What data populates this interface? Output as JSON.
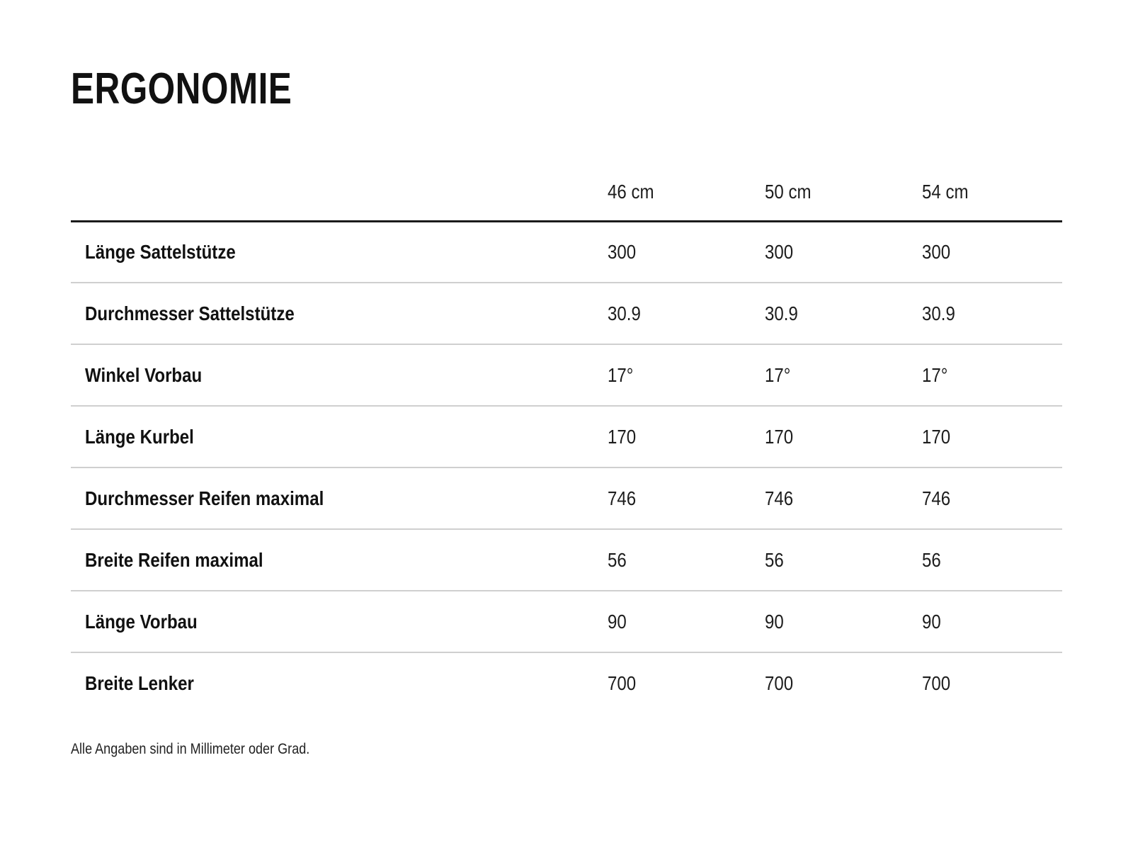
{
  "title": "ERGONOMIE",
  "table": {
    "size_columns": [
      "46 cm",
      "50 cm",
      "54 cm"
    ],
    "rows": [
      {
        "label": "Länge Sattelstütze",
        "values": [
          "300",
          "300",
          "300"
        ]
      },
      {
        "label": "Durchmesser Sattelstütze",
        "values": [
          "30.9",
          "30.9",
          "30.9"
        ]
      },
      {
        "label": "Winkel Vorbau",
        "values": [
          "17°",
          "17°",
          "17°"
        ]
      },
      {
        "label": "Länge Kurbel",
        "values": [
          "170",
          "170",
          "170"
        ]
      },
      {
        "label": "Durchmesser Reifen maximal",
        "values": [
          "746",
          "746",
          "746"
        ]
      },
      {
        "label": "Breite Reifen maximal",
        "values": [
          "56",
          "56",
          "56"
        ]
      },
      {
        "label": "Länge Vorbau",
        "values": [
          "90",
          "90",
          "90"
        ]
      },
      {
        "label": "Breite Lenker",
        "values": [
          "700",
          "700",
          "700"
        ]
      }
    ],
    "footnote": "Alle Angaben sind in Millimeter oder Grad."
  },
  "colors": {
    "background": "#ffffff",
    "heading_text": "#111111",
    "body_text": "#1d1d1d",
    "thick_rule": "#1a1a1a",
    "row_rule": "#cfcfcf"
  }
}
